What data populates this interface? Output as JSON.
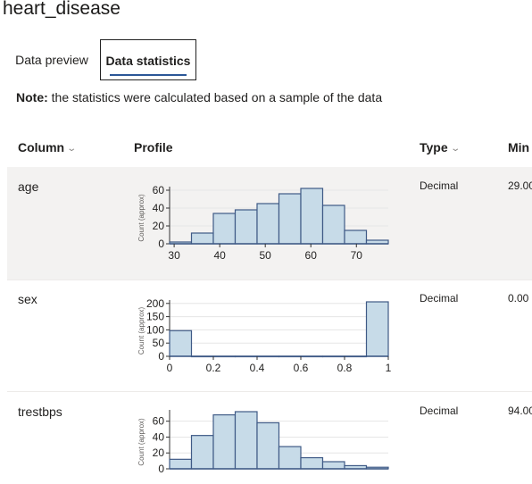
{
  "dataset": {
    "title": "heart_disease"
  },
  "tabs": [
    {
      "label": "Data preview",
      "active": false
    },
    {
      "label": "Data statistics",
      "active": true
    }
  ],
  "note": {
    "label": "Note:",
    "text": " the statistics were calculated based on a sample of the data"
  },
  "columns_header": {
    "column": "Column",
    "profile": "Profile",
    "type": "Type",
    "min": "Min"
  },
  "rows": [
    {
      "name": "age",
      "type": "Decimal",
      "min": "29.00",
      "chart_data": {
        "type": "bar",
        "title": "",
        "xlabel": "",
        "ylabel": "Count (approx)",
        "bin_edges": [
          29,
          33.8,
          38.6,
          43.4,
          48.2,
          53,
          57.8,
          62.6,
          67.4,
          72.2,
          77
        ],
        "values": [
          2,
          12,
          34,
          38,
          45,
          56,
          62,
          43,
          15,
          4
        ],
        "yticks": [
          "0",
          "20",
          "40",
          "60"
        ],
        "xticks": [
          "30",
          "40",
          "50",
          "60",
          "70"
        ],
        "xlim": [
          29,
          77
        ],
        "ylim": [
          0,
          62
        ]
      }
    },
    {
      "name": "sex",
      "type": "Decimal",
      "min": "0.00",
      "chart_data": {
        "type": "bar",
        "title": "",
        "xlabel": "",
        "ylabel": "Count (approx)",
        "bin_edges": [
          0,
          0.1,
          0.2,
          0.3,
          0.4,
          0.5,
          0.6,
          0.7,
          0.8,
          0.9,
          1
        ],
        "values": [
          97,
          0,
          0,
          0,
          0,
          0,
          0,
          0,
          0,
          206
        ],
        "yticks": [
          "0",
          "50",
          "100",
          "150",
          "200"
        ],
        "xticks": [
          "0",
          "0.2",
          "0.4",
          "0.6",
          "0.8",
          "1"
        ],
        "xlim": [
          0,
          1
        ],
        "ylim": [
          0,
          206
        ]
      }
    },
    {
      "name": "trestbps",
      "type": "Decimal",
      "min": "94.00",
      "chart_data": {
        "type": "bar",
        "title": "",
        "xlabel": "",
        "ylabel": "Count (approx)",
        "bin_edges": [
          94,
          104.6,
          115.2,
          125.8,
          136.4,
          147,
          157.6,
          168.2,
          178.8,
          189.4,
          200
        ],
        "values": [
          12,
          42,
          68,
          72,
          58,
          28,
          14,
          9,
          4,
          2
        ],
        "yticks": [
          "0",
          "20",
          "40",
          "60"
        ],
        "xticks": [],
        "xlim": [
          94,
          200
        ],
        "ylim": [
          0,
          72
        ]
      }
    }
  ]
}
